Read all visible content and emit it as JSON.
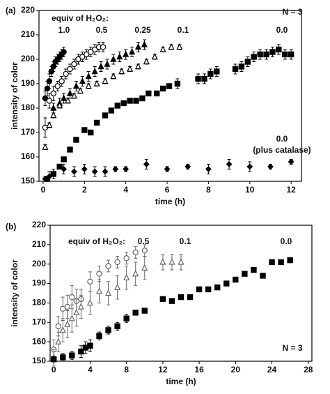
{
  "chart_data": [
    {
      "type": "scatter",
      "panel_label": "(a)",
      "annotation": "N = 3",
      "legend_title": "equiv of H₂O₂:",
      "note": "(plus catalase)",
      "xlabel": "time (h)",
      "ylabel": "intensity of color",
      "xlim": [
        -0.2,
        12.5
      ],
      "ylim": [
        150,
        220
      ],
      "xticks": [
        0,
        2,
        4,
        6,
        8,
        10,
        12
      ],
      "yticks": [
        150,
        160,
        170,
        180,
        190,
        200,
        210,
        220
      ],
      "series": [
        {
          "name": "1.0",
          "marker": "circle",
          "color": "#000000",
          "x": [
            0.1,
            0.2,
            0.3,
            0.4,
            0.5,
            0.6,
            0.7,
            0.8,
            0.9,
            1.0
          ],
          "values": [
            184,
            188,
            191,
            195,
            197,
            199,
            200,
            201,
            202,
            203
          ],
          "errors": [
            3,
            3,
            3,
            2,
            2,
            2,
            2,
            2,
            2,
            2
          ]
        },
        {
          "name": "0.5",
          "marker": "circle-open",
          "color": "#000000",
          "x": [
            0.1,
            0.3,
            0.5,
            0.7,
            0.9,
            1.1,
            1.3,
            1.5,
            1.7,
            1.9,
            2.1,
            2.3,
            2.5,
            2.7,
            2.9
          ],
          "values": [
            172,
            183,
            186,
            189,
            191,
            194,
            196,
            198,
            200,
            201,
            202,
            203,
            204,
            205,
            205
          ],
          "errors": [
            4,
            3,
            3,
            2,
            2,
            2,
            2,
            2,
            2,
            2,
            2,
            2,
            2,
            2,
            2
          ]
        },
        {
          "name": "0.25",
          "marker": "triangle",
          "color": "#000000",
          "x": [
            0.5,
            0.8,
            1.0,
            1.3,
            1.6,
            1.9,
            2.2,
            2.5,
            2.8,
            3.1,
            3.4,
            3.7,
            4.0,
            4.3,
            4.6,
            4.9
          ],
          "values": [
            180,
            182,
            184,
            186,
            189,
            191,
            193,
            195,
            197,
            198,
            200,
            201,
            202,
            203,
            205,
            206
          ],
          "errors": [
            2,
            2,
            2,
            2,
            2,
            2,
            2,
            2,
            2,
            2,
            2,
            2,
            2,
            2,
            2,
            2
          ]
        },
        {
          "name": "0.1",
          "marker": "triangle-open",
          "color": "#000000",
          "x": [
            0.1,
            0.3,
            0.5,
            0.8,
            1.2,
            1.5,
            1.8,
            2.2,
            2.6,
            3.0,
            3.4,
            3.8,
            4.2,
            4.6,
            5.0,
            5.4,
            5.8,
            6.2,
            6.6
          ],
          "values": [
            164,
            173,
            177,
            181,
            183,
            185,
            187,
            189,
            190,
            191,
            193,
            195,
            196,
            197,
            199,
            201,
            204,
            205,
            205
          ],
          "errors": [
            1,
            1,
            1,
            1,
            1,
            1,
            1,
            1,
            1,
            1,
            1,
            1,
            1,
            1,
            1,
            1,
            1,
            1,
            1
          ]
        },
        {
          "name": "0.0",
          "marker": "square",
          "color": "#000000",
          "x": [
            0.2,
            0.5,
            0.8,
            1.0,
            1.3,
            1.6,
            2.0,
            2.3,
            2.6,
            3.0,
            3.3,
            3.6,
            3.9,
            4.2,
            4.5,
            4.8,
            5.1,
            5.5,
            5.8,
            6.1,
            6.5,
            7.5,
            7.8,
            8.1,
            8.4,
            9.3,
            9.6,
            9.9,
            10.2,
            10.5,
            10.8,
            11.1,
            11.4,
            11.7,
            12.0
          ],
          "values": [
            151,
            153,
            156,
            159,
            163,
            167,
            171,
            170,
            174,
            177,
            179,
            181,
            182,
            183,
            183,
            184,
            186,
            186,
            188,
            189,
            190,
            192,
            192,
            194,
            195,
            196,
            197,
            199,
            201,
            202,
            202,
            203,
            204,
            202,
            202
          ],
          "errors": [
            1,
            1,
            1,
            1,
            1,
            1,
            1,
            1,
            1,
            1,
            1,
            1,
            1,
            1,
            1,
            1,
            1,
            1,
            1,
            1,
            2,
            2,
            2,
            2,
            2,
            2,
            2,
            2,
            2,
            2,
            2,
            2,
            2,
            2,
            2
          ]
        },
        {
          "name": "0.0",
          "marker": "diamond",
          "color": "#000000",
          "x": [
            0.1,
            0.3,
            0.5,
            1.0,
            1.5,
            2.0,
            2.5,
            3.0,
            3.5,
            4.0,
            5.0,
            6.0,
            7.0,
            8.0,
            9.0,
            10.0,
            11.0,
            12.0
          ],
          "values": [
            151,
            152,
            153,
            155,
            154,
            155,
            154,
            154,
            155,
            155,
            157,
            155,
            156,
            155,
            157,
            156,
            156,
            158
          ],
          "errors": [
            1,
            2,
            2,
            2,
            2,
            2,
            2,
            2,
            1,
            1,
            2,
            1,
            1,
            2,
            2,
            2,
            1,
            1
          ]
        }
      ]
    },
    {
      "type": "scatter",
      "panel_label": "(b)",
      "annotation": "N = 3",
      "legend_title": "equiv of H₂O₂:",
      "xlabel": "time (h)",
      "ylabel": "intensity of color",
      "xlim": [
        -0.4,
        28.4
      ],
      "ylim": [
        150,
        220
      ],
      "xticks": [
        0,
        4,
        8,
        12,
        16,
        20,
        24,
        28
      ],
      "yticks": [
        150,
        160,
        170,
        180,
        190,
        200,
        210,
        220
      ],
      "series": [
        {
          "name": "0.5",
          "marker": "circle-open",
          "color": "#666666",
          "x": [
            0,
            0.5,
            1,
            1.5,
            2,
            2.5,
            3,
            4,
            5,
            6,
            7,
            8,
            9,
            10
          ],
          "values": [
            156,
            168,
            177,
            178,
            183,
            181,
            182,
            191,
            195,
            199,
            201,
            203,
            206,
            207
          ],
          "errors": [
            5,
            5,
            6,
            6,
            6,
            6,
            5,
            5,
            4,
            3,
            3,
            3,
            3,
            3
          ]
        },
        {
          "name": "0.1",
          "marker": "triangle-open",
          "color": "#666666",
          "x": [
            0,
            0.5,
            1,
            1.5,
            2,
            2.5,
            3,
            4,
            5,
            6,
            7,
            8,
            9,
            10,
            12,
            13,
            14
          ],
          "values": [
            152,
            160,
            166,
            169,
            172,
            175,
            178,
            180,
            186,
            185,
            188,
            193,
            195,
            198,
            201,
            201,
            201
          ],
          "errors": [
            4,
            5,
            6,
            7,
            7,
            7,
            6,
            6,
            6,
            6,
            6,
            6,
            6,
            6,
            4,
            4,
            4
          ]
        },
        {
          "name": "0.0",
          "marker": "square",
          "color": "#000000",
          "x": [
            0,
            1,
            2,
            3,
            3.5,
            4,
            5,
            6,
            7,
            8,
            9,
            10,
            12,
            13,
            14,
            15,
            16,
            17,
            18,
            19,
            20,
            21,
            22,
            23,
            24,
            25,
            26
          ],
          "values": [
            151,
            152,
            153,
            155,
            157,
            158,
            163,
            166,
            168,
            172,
            175,
            176,
            182,
            181,
            183,
            183,
            187,
            187,
            188,
            190,
            192,
            195,
            197,
            194,
            201,
            201,
            202
          ],
          "errors": [
            1,
            2,
            2,
            3,
            3,
            3,
            2,
            2,
            2,
            2,
            1,
            1,
            1,
            1,
            1,
            1,
            1,
            1,
            1,
            1,
            1,
            1,
            1,
            1,
            1,
            1,
            1
          ]
        }
      ]
    }
  ]
}
